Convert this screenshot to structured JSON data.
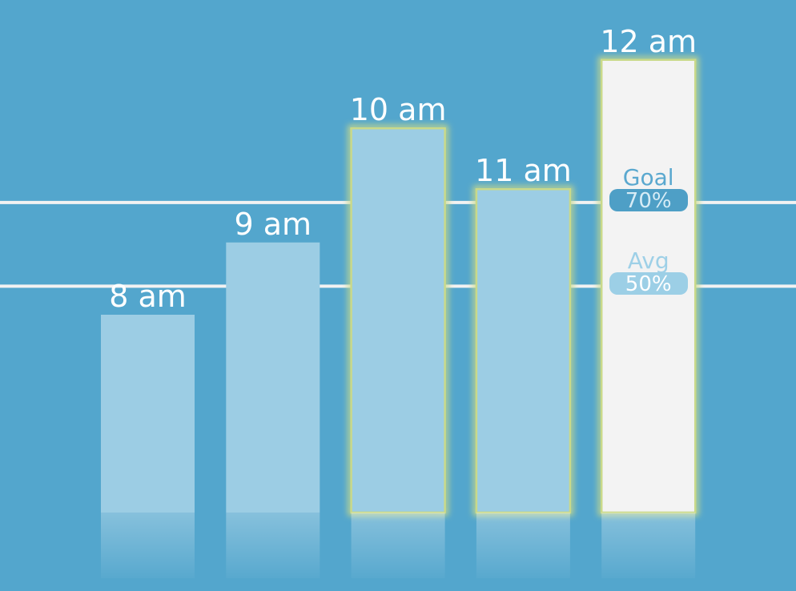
{
  "chart_data": {
    "type": "bar",
    "categories": [
      "8 am",
      "9 am",
      "10 am",
      "11 am",
      "12 am"
    ],
    "values": [
      52,
      71,
      101,
      85,
      119
    ],
    "highlighted": [
      false,
      false,
      true,
      true,
      true
    ],
    "selected_index": 4,
    "ylim": [
      0,
      128
    ],
    "grid": false,
    "reference_lines": [
      {
        "name": "Goal",
        "label": "70%",
        "value": 81.5
      },
      {
        "name": "Avg",
        "label": "50%",
        "value": 59.5
      }
    ],
    "colors": {
      "background": "#53a6cd",
      "bar": "#9ccde4",
      "bar_selected": "#f3f3f3",
      "highlight_glow": "#c9d98a",
      "line": "#f2f2f2"
    }
  }
}
